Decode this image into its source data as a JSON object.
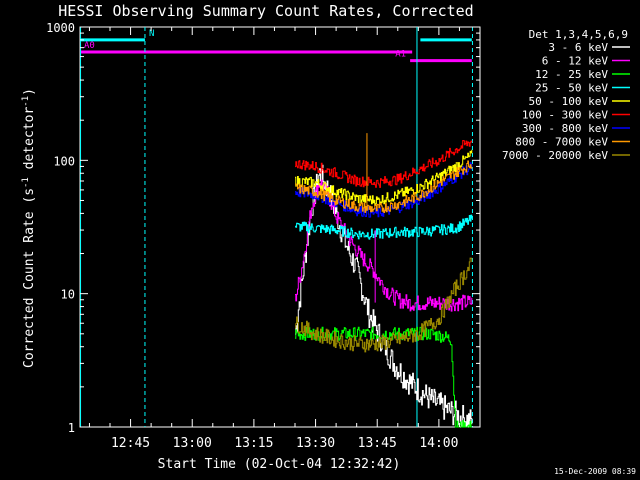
{
  "chart_data": {
    "type": "line",
    "title": "HESSI Observing Summary Count Rates, Corrected",
    "xlabel": "Start Time (02-Oct-04 12:32:42)",
    "ylabel_main": "Corrected Count Rate (s",
    "ylabel_sup1": "-1",
    "ylabel_mid": " detector",
    "ylabel_sup2": "-1",
    "ylabel_end": ")",
    "ylog": true,
    "ylim": [
      1,
      1000
    ],
    "xlim": [
      "12:32:42",
      "14:10:00"
    ],
    "x_ticks": [
      "12:45",
      "13:00",
      "13:15",
      "13:30",
      "13:45",
      "14:00"
    ],
    "y_ticks": [
      "1",
      "10",
      "100",
      "1000"
    ],
    "legend_title": "Det 1,3,4,5,6,9",
    "footer": "15-Dec-2009 08:39",
    "status_bars": [
      {
        "label": "N",
        "color": "#00ffff",
        "y": 800,
        "segments": [
          [
            "12:32:42",
            "12:48:30"
          ],
          [
            "13:55:30",
            "14:08:00"
          ]
        ]
      },
      {
        "label": "A0",
        "color": "#ff00ff",
        "y": 650,
        "segments": [
          [
            "12:32:42",
            "13:53:30"
          ]
        ]
      },
      {
        "label": "A1",
        "color": "#ff00ff",
        "y": 560,
        "segments": [
          [
            "13:53:00",
            "14:08:00"
          ]
        ]
      }
    ],
    "event_lines": [
      {
        "time": "12:32:50",
        "color": "#00ffff",
        "style": "solid"
      },
      {
        "time": "12:48:30",
        "color": "#00ffff",
        "style": "dashed"
      },
      {
        "time": "13:54:40",
        "color": "#00ffff",
        "style": "solid"
      },
      {
        "time": "14:08:10",
        "color": "#00ffff",
        "style": "dashed"
      }
    ],
    "series": [
      {
        "name": "3 - 6 keV",
        "color": "#ffffff",
        "jitter": 0.1,
        "x": [
          "13:25",
          "13:27",
          "13:29",
          "13:31",
          "13:33",
          "13:35",
          "13:37",
          "13:40",
          "13:43",
          "13:46",
          "13:49",
          "13:52",
          "13:55",
          "13:58",
          "14:01",
          "14:05",
          "14:08"
        ],
        "y": [
          5,
          15,
          45,
          80,
          60,
          40,
          25,
          15,
          7,
          4.5,
          3,
          2.3,
          1.9,
          1.6,
          1.4,
          1.2,
          1.1
        ]
      },
      {
        "name": "6 - 12 keV",
        "color": "#ff00ff",
        "jitter": 0.06,
        "x": [
          "13:25",
          "13:27",
          "13:29",
          "13:31",
          "13:33",
          "13:35",
          "13:38",
          "13:41",
          "13:44",
          "13:46",
          "13:48",
          "13:50",
          "13:53",
          "13:56",
          "14:00",
          "14:04",
          "14:08"
        ],
        "y": [
          9,
          18,
          45,
          70,
          55,
          38,
          26,
          19,
          15,
          12,
          10,
          9,
          8.5,
          8.5,
          8.5,
          8.5,
          8.6
        ]
      },
      {
        "name": "12 - 25 keV",
        "color": "#00ff00",
        "jitter": 0.05,
        "x": [
          "13:25",
          "13:30",
          "13:35",
          "13:40",
          "13:45",
          "13:50",
          "13:55",
          "13:58",
          "14:01",
          "14:03",
          "14:04",
          "14:08"
        ],
        "y": [
          5,
          5,
          5,
          5,
          5,
          5,
          5,
          5,
          4.8,
          4.5,
          1,
          1
        ]
      },
      {
        "name": "25 - 50 keV",
        "color": "#00ffff",
        "jitter": 0.04,
        "x": [
          "13:25",
          "13:30",
          "13:35",
          "13:40",
          "13:45",
          "13:50",
          "13:55",
          "14:00",
          "14:04",
          "14:08"
        ],
        "y": [
          32,
          31,
          30,
          28,
          28,
          29,
          29,
          30,
          31,
          36
        ]
      },
      {
        "name": "50 - 100 keV",
        "color": "#ffff00",
        "jitter": 0.04,
        "x": [
          "13:25",
          "13:30",
          "13:35",
          "13:40",
          "13:45",
          "13:50",
          "13:55",
          "14:00",
          "14:04",
          "14:08"
        ],
        "y": [
          70,
          68,
          58,
          52,
          50,
          55,
          62,
          75,
          90,
          110
        ]
      },
      {
        "name": "100 - 300 keV",
        "color": "#ff0000",
        "jitter": 0.04,
        "x": [
          "13:25",
          "13:30",
          "13:35",
          "13:40",
          "13:45",
          "13:50",
          "13:55",
          "14:00",
          "14:04",
          "14:08"
        ],
        "y": [
          95,
          90,
          80,
          70,
          68,
          72,
          85,
          100,
          120,
          140
        ]
      },
      {
        "name": "300 - 800 keV",
        "color": "#0000ff",
        "jitter": 0.04,
        "x": [
          "13:25",
          "13:30",
          "13:35",
          "13:40",
          "13:45",
          "13:50",
          "13:55",
          "14:00",
          "14:04",
          "14:08"
        ],
        "y": [
          58,
          55,
          48,
          42,
          40,
          44,
          50,
          62,
          75,
          90
        ]
      },
      {
        "name": "800 - 7000 keV",
        "color": "#ff9900",
        "jitter": 0.04,
        "x": [
          "13:25",
          "13:30",
          "13:35",
          "13:40",
          "13:45",
          "13:50",
          "13:55",
          "14:00",
          "14:04",
          "14:08"
        ],
        "y": [
          62,
          58,
          50,
          45,
          43,
          47,
          54,
          68,
          80,
          95
        ]
      },
      {
        "name": "7000 - 20000 keV",
        "color": "#998800",
        "jitter": 0.06,
        "x": [
          "13:25",
          "13:30",
          "13:35",
          "13:40",
          "13:45",
          "13:50",
          "13:55",
          "14:00",
          "14:04",
          "14:08"
        ],
        "y": [
          6,
          5,
          4.5,
          4.2,
          4.2,
          4.5,
          5,
          6.5,
          11,
          17
        ]
      }
    ],
    "spikes": [
      {
        "time": "13:42:30",
        "series": "800 - 7000 keV",
        "peak": 160
      },
      {
        "time": "13:44:30",
        "series": "6 - 12 keV",
        "peak": 30
      }
    ]
  }
}
